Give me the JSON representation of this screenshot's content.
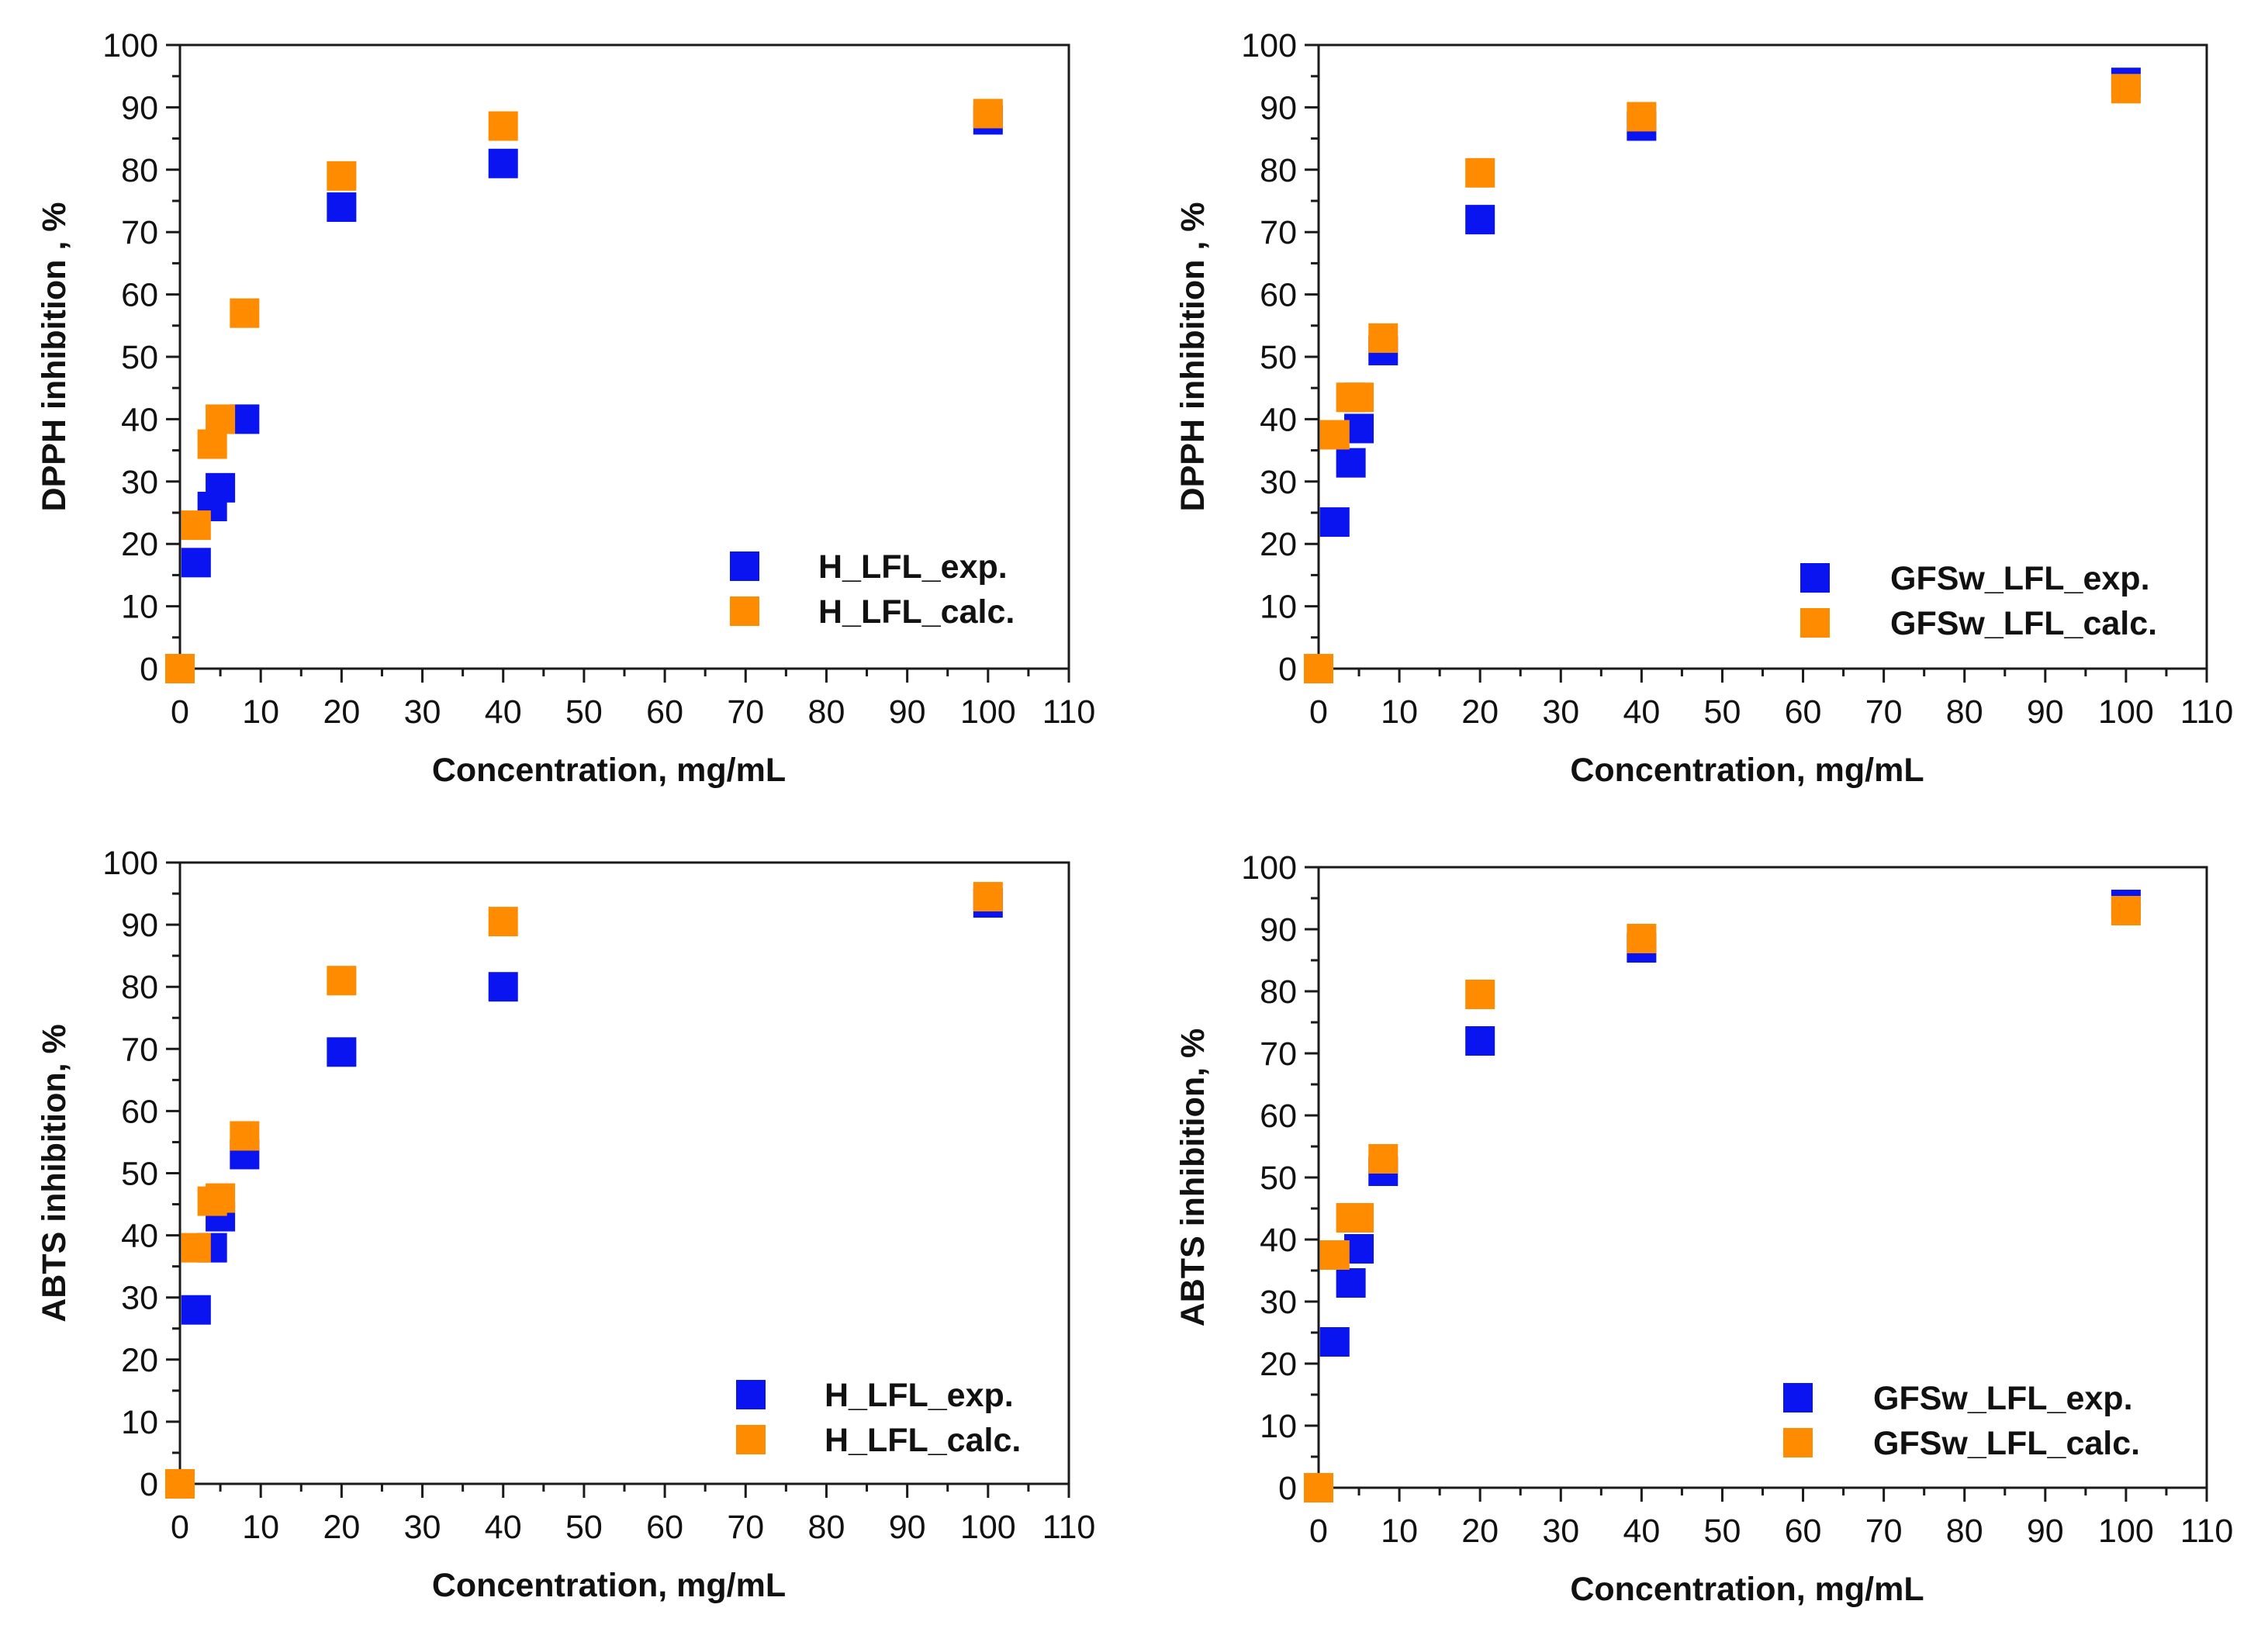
{
  "colors": {
    "exp": "#0a14f0",
    "calc": "#ff8c00",
    "axis": "#1a1a1a"
  },
  "chart_data": [
    {
      "type": "scatter",
      "xlabel": "Concentration, mg/mL",
      "ylabel": "DPPH inhibition , %",
      "xlim": [
        0,
        110
      ],
      "ylim": [
        0,
        100
      ],
      "xticks": [
        0,
        10,
        20,
        30,
        40,
        50,
        60,
        70,
        80,
        90,
        100,
        110
      ],
      "yticks": [
        0,
        10,
        20,
        30,
        40,
        50,
        60,
        70,
        80,
        90,
        100
      ],
      "legend_position": "bottom-right",
      "series": [
        {
          "name": "H_LFL_exp.",
          "color": "exp",
          "x": [
            2,
            4,
            5,
            8,
            20,
            40,
            100
          ],
          "y": [
            17,
            26,
            29,
            40,
            74,
            81,
            88
          ]
        },
        {
          "name": "H_LFL_calc.",
          "color": "calc",
          "x": [
            0,
            2,
            4,
            5,
            8,
            20,
            40,
            100
          ],
          "y": [
            0,
            23,
            36,
            40,
            57,
            79,
            87,
            89
          ]
        }
      ]
    },
    {
      "type": "scatter",
      "xlabel": "Concentration, mg/mL",
      "ylabel": "DPPH inhibition , %",
      "xlim": [
        0,
        110
      ],
      "ylim": [
        0,
        100
      ],
      "xticks": [
        0,
        10,
        20,
        30,
        40,
        50,
        60,
        70,
        80,
        90,
        100,
        110
      ],
      "yticks": [
        0,
        10,
        20,
        30,
        40,
        50,
        60,
        70,
        80,
        90,
        100
      ],
      "legend_position": "bottom-right",
      "series": [
        {
          "name": "GFSw_LFL_exp.",
          "color": "exp",
          "x": [
            2,
            4,
            5,
            8,
            20,
            40,
            100
          ],
          "y": [
            23.5,
            33,
            38.5,
            51,
            72,
            87,
            94
          ]
        },
        {
          "name": "GFSw_LFL_calc.",
          "color": "calc",
          "x": [
            0,
            2,
            4,
            5,
            8,
            20,
            40,
            100
          ],
          "y": [
            0,
            37.5,
            43.5,
            43.5,
            53,
            79.5,
            88.5,
            93
          ]
        }
      ]
    },
    {
      "type": "scatter",
      "xlabel": "Concentration, mg/mL",
      "ylabel": "ABTS inhibition, %",
      "xlim": [
        0,
        110
      ],
      "ylim": [
        0,
        100
      ],
      "xticks": [
        0,
        10,
        20,
        30,
        40,
        50,
        60,
        70,
        80,
        90,
        100,
        110
      ],
      "yticks": [
        0,
        10,
        20,
        30,
        40,
        50,
        60,
        70,
        80,
        90,
        100
      ],
      "legend_position": "bottom-right",
      "series": [
        {
          "name": "H_LFL_exp.",
          "color": "exp",
          "x": [
            2,
            4,
            5,
            8,
            20,
            40,
            100
          ],
          "y": [
            28,
            38,
            43,
            53,
            69.5,
            80,
            93.5
          ]
        },
        {
          "name": "H_LFL_calc.",
          "color": "calc",
          "x": [
            0,
            2,
            4,
            5,
            8,
            20,
            40,
            100
          ],
          "y": [
            0,
            38,
            45.5,
            46,
            56,
            81,
            90.5,
            94.5
          ]
        }
      ]
    },
    {
      "type": "scatter",
      "xlabel": "Concentration, mg/mL",
      "ylabel": "ABTS inhibition, %",
      "xlim": [
        0,
        110
      ],
      "ylim": [
        0,
        100
      ],
      "xticks": [
        0,
        10,
        20,
        30,
        40,
        50,
        60,
        70,
        80,
        90,
        100,
        110
      ],
      "yticks": [
        0,
        10,
        20,
        30,
        40,
        50,
        60,
        70,
        80,
        90,
        100
      ],
      "legend_position": "bottom-right",
      "series": [
        {
          "name": "GFSw_LFL_exp.",
          "color": "exp",
          "x": [
            2,
            4,
            5,
            8,
            20,
            40,
            100
          ],
          "y": [
            23.5,
            33,
            38.5,
            51,
            72,
            87,
            94
          ]
        },
        {
          "name": "GFSw_LFL_calc.",
          "color": "calc",
          "x": [
            0,
            2,
            4,
            5,
            8,
            20,
            40,
            100
          ],
          "y": [
            0,
            37.5,
            43.5,
            43.5,
            53,
            79.5,
            88.5,
            93
          ]
        }
      ]
    }
  ]
}
